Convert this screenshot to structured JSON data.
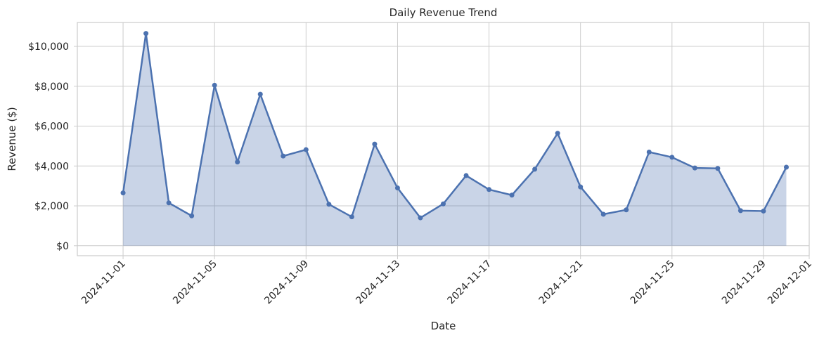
{
  "chart_data": {
    "type": "area",
    "title": "Daily Revenue Trend",
    "xlabel": "Date",
    "ylabel": "Revenue ($)",
    "x": [
      "2024-11-01",
      "2024-11-02",
      "2024-11-03",
      "2024-11-04",
      "2024-11-05",
      "2024-11-06",
      "2024-11-07",
      "2024-11-08",
      "2024-11-09",
      "2024-11-10",
      "2024-11-11",
      "2024-11-12",
      "2024-11-13",
      "2024-11-14",
      "2024-11-15",
      "2024-11-16",
      "2024-11-17",
      "2024-11-18",
      "2024-11-19",
      "2024-11-20",
      "2024-11-21",
      "2024-11-22",
      "2024-11-23",
      "2024-11-24",
      "2024-11-25",
      "2024-11-26",
      "2024-11-27",
      "2024-11-28",
      "2024-11-29",
      "2024-11-30"
    ],
    "values": [
      2650,
      10650,
      2150,
      1500,
      8050,
      4200,
      7600,
      4500,
      4820,
      2080,
      1450,
      5100,
      2900,
      1400,
      2100,
      3520,
      2820,
      2540,
      3840,
      5640,
      2950,
      1580,
      1800,
      4700,
      4440,
      3900,
      3880,
      1760,
      1740,
      3940
    ],
    "x_ticks": [
      "2024-11-01",
      "2024-11-05",
      "2024-11-09",
      "2024-11-13",
      "2024-11-17",
      "2024-11-21",
      "2024-11-25",
      "2024-11-29",
      "2024-12-01"
    ],
    "y_ticks": [
      0,
      2000,
      4000,
      6000,
      8000,
      10000
    ],
    "y_tick_labels": [
      "$0",
      "$2,000",
      "$4,000",
      "$6,000",
      "$8,000",
      "$10,000"
    ],
    "xlim": [
      "2024-10-30",
      "2024-12-01"
    ],
    "ylim": [
      -500,
      11200
    ],
    "grid": true,
    "colors": {
      "line": "#4c72b0",
      "fill": "#4c72b0",
      "grid": "#cccccc",
      "frame": "#cccccc",
      "text": "#262626"
    }
  }
}
